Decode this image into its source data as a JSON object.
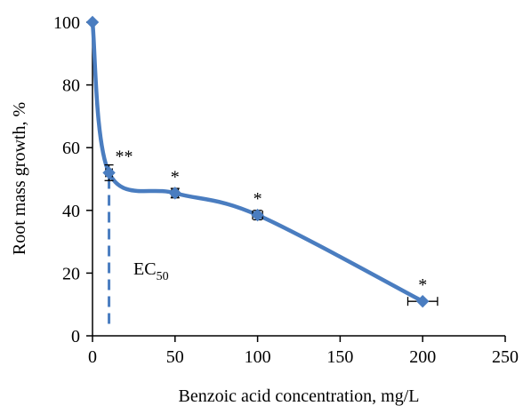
{
  "chart_data": {
    "type": "line",
    "xlabel": "Benzoic acid concentration, mg/L",
    "ylabel": "Root mass growth, %",
    "xlim": [
      0,
      250
    ],
    "ylim": [
      0,
      100
    ],
    "x_ticks": [
      0,
      50,
      100,
      150,
      200,
      250
    ],
    "y_ticks": [
      0,
      20,
      40,
      60,
      80,
      100
    ],
    "grid": false,
    "legend": "none",
    "series": [
      {
        "x": [
          0,
          10,
          50,
          100,
          200
        ],
        "y": [
          100,
          52,
          45.5,
          38.5,
          11
        ],
        "error_x": [
          0,
          2,
          2,
          3,
          9
        ],
        "error_y": [
          0,
          2.5,
          1.5,
          1.5,
          0
        ],
        "significance": [
          "",
          "**",
          "*",
          "*",
          "*"
        ],
        "color": "#4a7dc0"
      }
    ],
    "annotations": {
      "ec50_x": 10,
      "ec50_base": "EC",
      "ec50_sub": "50"
    }
  }
}
